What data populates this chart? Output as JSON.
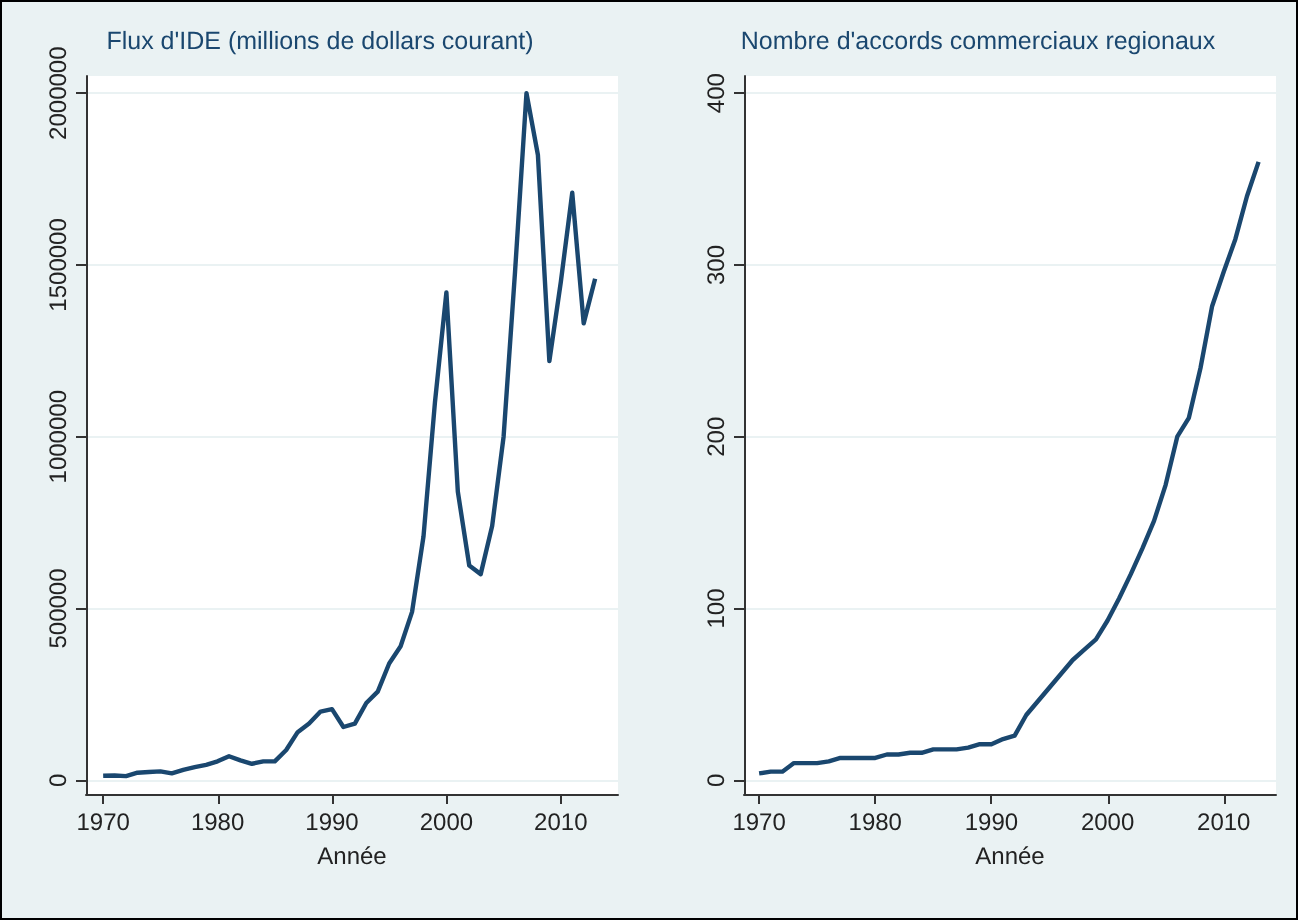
{
  "chart_data": [
    {
      "type": "line",
      "title": "Flux d'IDE (millions de dollars courant)",
      "xlabel": "Année",
      "color": "#1a476f",
      "grid": "y",
      "x": [
        1970,
        1971,
        1972,
        1973,
        1974,
        1975,
        1976,
        1977,
        1978,
        1979,
        1980,
        1981,
        1982,
        1983,
        1984,
        1985,
        1986,
        1987,
        1988,
        1989,
        1990,
        1991,
        1992,
        1993,
        1994,
        1995,
        1996,
        1997,
        1998,
        1999,
        2000,
        2001,
        2002,
        2003,
        2004,
        2005,
        2006,
        2007,
        2008,
        2009,
        2010,
        2011,
        2012,
        2013
      ],
      "values": [
        13000,
        14000,
        12000,
        22000,
        24000,
        26000,
        20000,
        30000,
        38000,
        45000,
        55000,
        70000,
        58000,
        48000,
        55000,
        55000,
        88000,
        140000,
        165000,
        200000,
        207000,
        155000,
        165000,
        225000,
        258000,
        340000,
        390000,
        490000,
        710000,
        1100000,
        1420000,
        840000,
        625000,
        600000,
        740000,
        1000000,
        1480000,
        2000000,
        1820000,
        1220000,
        1450000,
        1710000,
        1330000,
        1460000
      ],
      "xlim": [
        1968.5,
        2015
      ],
      "xticks": [
        1970,
        1980,
        1990,
        2000,
        2010
      ],
      "ylim": [
        -40000,
        2050000
      ],
      "yticks": [
        0,
        500000,
        1000000,
        1500000,
        2000000
      ]
    },
    {
      "type": "line",
      "title": "Nombre d'accords commerciaux regionaux",
      "xlabel": "Année",
      "color": "#1a476f",
      "grid": "y",
      "x": [
        1970,
        1971,
        1972,
        1973,
        1974,
        1975,
        1976,
        1977,
        1978,
        1979,
        1980,
        1981,
        1982,
        1983,
        1984,
        1985,
        1986,
        1987,
        1988,
        1989,
        1990,
        1991,
        1992,
        1993,
        1994,
        1995,
        1996,
        1997,
        1998,
        1999,
        2000,
        2001,
        2002,
        2003,
        2004,
        2005,
        2006,
        2007,
        2008,
        2009,
        2010,
        2011,
        2012,
        2013
      ],
      "values": [
        4,
        5,
        5,
        10,
        10,
        10,
        11,
        13,
        13,
        13,
        13,
        15,
        15,
        16,
        16,
        18,
        18,
        18,
        19,
        21,
        21,
        24,
        26,
        38,
        46,
        54,
        62,
        70,
        76,
        82,
        93,
        106,
        120,
        135,
        151,
        172,
        200,
        211,
        240,
        276,
        296,
        315,
        340,
        360
      ],
      "xlim": [
        1968.7,
        2014.5
      ],
      "xticks": [
        1970,
        1980,
        1990,
        2000,
        2010
      ],
      "ylim": [
        -8,
        410
      ],
      "yticks": [
        0,
        100,
        200,
        300,
        400
      ]
    }
  ]
}
